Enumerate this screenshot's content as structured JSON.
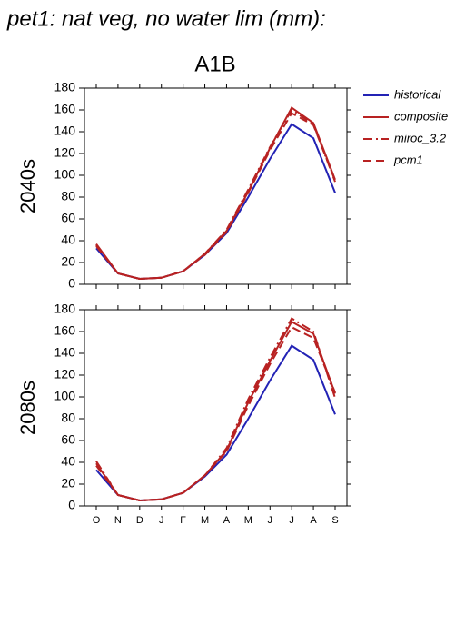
{
  "title": "pet1: nat veg, no water lim (mm):",
  "scenario": "A1B",
  "chart_data": [
    {
      "type": "line",
      "ylabel": "2040s",
      "ylim": [
        0,
        180
      ],
      "yticks": [
        0,
        20,
        40,
        60,
        80,
        100,
        120,
        140,
        160,
        180
      ],
      "series": [
        {
          "name": "historical",
          "color": "#2323b5",
          "dash": "solid",
          "values": [
            33,
            10,
            5,
            6,
            12,
            27,
            47,
            80,
            115,
            147,
            134,
            84
          ]
        },
        {
          "name": "composite",
          "color": "#b82222",
          "dash": "solid",
          "values": [
            37,
            10,
            5,
            6,
            12,
            28,
            49,
            85,
            125,
            162,
            148,
            96
          ]
        },
        {
          "name": "miroc_3.2",
          "color": "#b82222",
          "dash": "dashdot",
          "values": [
            36,
            10,
            5,
            6,
            12,
            28,
            50,
            87,
            126,
            160,
            147,
            94
          ]
        },
        {
          "name": "pcm1",
          "color": "#b82222",
          "dash": "dash",
          "values": [
            35,
            10,
            5,
            6,
            12,
            27,
            48,
            84,
            123,
            157,
            146,
            95
          ]
        }
      ]
    },
    {
      "type": "line",
      "ylabel": "2080s",
      "ylim": [
        0,
        180
      ],
      "yticks": [
        0,
        20,
        40,
        60,
        80,
        100,
        120,
        140,
        160,
        180
      ],
      "categories": [
        "O",
        "N",
        "D",
        "J",
        "F",
        "M",
        "A",
        "M",
        "J",
        "J",
        "A",
        "S"
      ],
      "series": [
        {
          "color": "#2323b5",
          "dash": "solid",
          "values": [
            33,
            10,
            5,
            6,
            12,
            27,
            47,
            80,
            115,
            147,
            134,
            84
          ]
        },
        {
          "color": "#b82222",
          "dash": "solid",
          "values": [
            39,
            10,
            5,
            6,
            12,
            28,
            51,
            95,
            133,
            169,
            158,
            103
          ]
        },
        {
          "color": "#b82222",
          "dash": "dashdot",
          "values": [
            41,
            10,
            5,
            6,
            12,
            28,
            53,
            98,
            136,
            172,
            160,
            99
          ]
        },
        {
          "color": "#b82222",
          "dash": "dash",
          "values": [
            37,
            10,
            5,
            6,
            12,
            28,
            50,
            92,
            130,
            164,
            154,
            104
          ]
        }
      ]
    }
  ]
}
